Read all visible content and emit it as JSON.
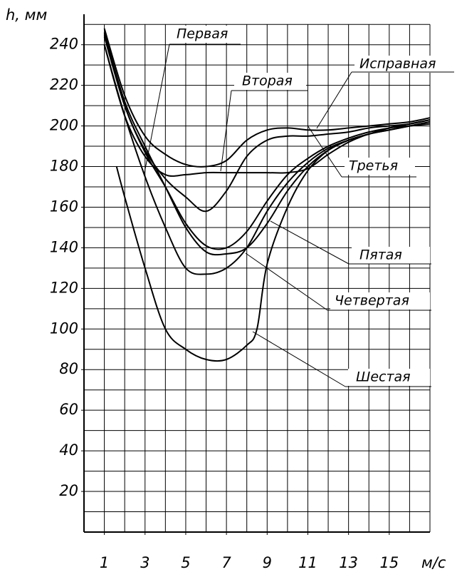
{
  "chart_data": {
    "type": "line",
    "y_label": "h, мм",
    "x_label": "м/с",
    "xlim": [
      0,
      17
    ],
    "ylim": [
      0,
      255
    ],
    "xticks": [
      1,
      3,
      5,
      7,
      9,
      11,
      13,
      15
    ],
    "yticks": [
      20,
      40,
      60,
      80,
      100,
      120,
      140,
      160,
      180,
      200,
      220,
      240
    ],
    "xgrid": [
      1,
      2,
      3,
      4,
      5,
      6,
      7,
      8,
      9,
      10,
      11,
      12,
      13,
      14,
      15,
      16,
      17
    ],
    "ygrid": [
      10,
      20,
      30,
      40,
      50,
      60,
      70,
      80,
      90,
      100,
      110,
      120,
      130,
      140,
      150,
      160,
      170,
      180,
      190,
      200,
      210,
      220,
      230,
      240,
      250
    ],
    "grid": true,
    "series": [
      {
        "name": "Первая",
        "color": "#000000",
        "x": [
          1,
          2,
          3,
          4,
          5,
          6,
          7,
          8,
          9,
          10,
          11,
          12,
          13,
          14,
          15,
          16,
          17
        ],
        "values": [
          240,
          205,
          185,
          176,
          176,
          177,
          177,
          177,
          177,
          177,
          179,
          186,
          192,
          196,
          198,
          200,
          202
        ]
      },
      {
        "name": "Вторая",
        "color": "#000000",
        "x": [
          1,
          2,
          3,
          4,
          5,
          6,
          7,
          8,
          9,
          10,
          11,
          12,
          13,
          14,
          15,
          16,
          17
        ],
        "values": [
          245,
          210,
          188,
          174,
          165,
          158,
          168,
          185,
          193,
          195,
          195,
          196,
          197,
          199,
          200,
          201,
          203
        ]
      },
      {
        "name": "Исправная",
        "color": "#000000",
        "x": [
          1,
          2,
          3,
          4,
          5,
          6,
          7,
          8,
          9,
          10,
          11,
          12,
          13,
          14,
          15,
          16,
          17
        ],
        "values": [
          248,
          215,
          195,
          186,
          181,
          180,
          183,
          193,
          198,
          199,
          198,
          198,
          199,
          200,
          201,
          202,
          204
        ]
      },
      {
        "name": "Третья",
        "color": "#000000",
        "x": [
          1,
          2,
          3,
          4,
          5,
          6,
          7,
          8,
          9,
          10,
          11,
          12,
          13,
          14,
          15,
          16,
          17
        ],
        "values": [
          244,
          210,
          187,
          170,
          152,
          141,
          140,
          148,
          163,
          176,
          184,
          190,
          194,
          197,
          199,
          201,
          203
        ]
      },
      {
        "name": "Пятая",
        "color": "#000000",
        "x": [
          1,
          2,
          3,
          4,
          5,
          6,
          7,
          8,
          9,
          10,
          11,
          12,
          13,
          14,
          15,
          16,
          17
        ],
        "values": [
          246,
          212,
          190,
          170,
          150,
          138,
          137,
          140,
          152,
          168,
          180,
          188,
          193,
          196,
          199,
          201,
          203
        ]
      },
      {
        "name": "Четвертая",
        "color": "#000000",
        "x": [
          1,
          2,
          3,
          4,
          5,
          6,
          7,
          8,
          9,
          10,
          11,
          12,
          13,
          14,
          15,
          16,
          17
        ],
        "values": [
          240,
          205,
          175,
          150,
          130,
          127,
          130,
          140,
          158,
          172,
          182,
          189,
          193,
          196,
          198,
          200,
          202
        ]
      },
      {
        "name": "Шестая",
        "color": "#000000",
        "x": [
          1.6,
          2,
          3,
          4,
          5,
          6,
          7,
          8,
          8.5,
          9,
          10,
          11,
          12,
          13,
          14,
          15,
          16,
          17
        ],
        "values": [
          180,
          165,
          130,
          100,
          90,
          85,
          85,
          92,
          100,
          132,
          160,
          178,
          188,
          193,
          196,
          199,
          200,
          201
        ]
      }
    ]
  }
}
